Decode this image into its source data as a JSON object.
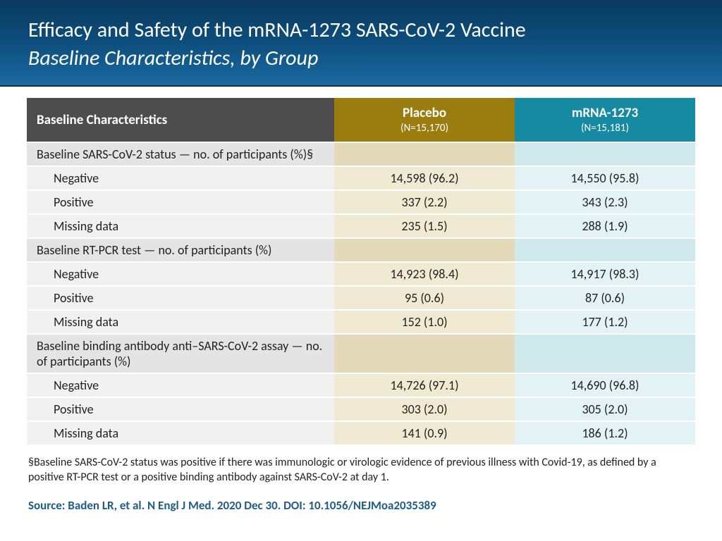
{
  "header": {
    "title": "Efficacy and Safety of the mRNA-1273 SARS-CoV-2 Vaccine",
    "subtitle": "Baseline Characteristics, by Group"
  },
  "table": {
    "columns": {
      "char": {
        "label": "Baseline Characteristics",
        "bg": "#4d4d4d",
        "fg": "#ffffff"
      },
      "placebo": {
        "label": "Placebo",
        "sub": "(N=15,170)",
        "bg": "#9b7c0e",
        "fg": "#ffffff"
      },
      "mrna": {
        "label": "mRNA-1273",
        "sub": "(N=15,181)",
        "bg": "#158aa2",
        "fg": "#ffffff"
      }
    },
    "row_bg": {
      "section": {
        "c1": "#e4e4e4",
        "c2": "#e4d9b9",
        "c3": "#cfe8ec"
      },
      "sub": {
        "c1": "#f1f1f1",
        "c2": "#f1ead2",
        "c3": "#e3f2f4"
      }
    },
    "rows": [
      {
        "type": "section",
        "c1": "Baseline SARS-CoV-2 status — no. of participants (%)§",
        "c2": "",
        "c3": ""
      },
      {
        "type": "sub",
        "c1": "Negative",
        "c2": "14,598 (96.2)",
        "c3": "14,550 (95.8)"
      },
      {
        "type": "sub",
        "c1": "Positive",
        "c2": "337 (2.2)",
        "c3": "343 (2.3)"
      },
      {
        "type": "sub",
        "c1": "Missing data",
        "c2": "235 (1.5)",
        "c3": "288 (1.9)"
      },
      {
        "type": "section",
        "c1": "Baseline RT-PCR test — no. of participants (%)",
        "c2": "",
        "c3": ""
      },
      {
        "type": "sub",
        "c1": "Negative",
        "c2": "14,923 (98.4)",
        "c3": "14,917 (98.3)"
      },
      {
        "type": "sub",
        "c1": "Positive",
        "c2": "95 (0.6)",
        "c3": "87 (0.6)"
      },
      {
        "type": "sub",
        "c1": "Missing data",
        "c2": "152 (1.0)",
        "c3": "177 (1.2)"
      },
      {
        "type": "section",
        "c1": "Baseline binding antibody anti–SARS-CoV-2 assay — no. of participants (%)",
        "c2": "",
        "c3": ""
      },
      {
        "type": "sub",
        "c1": "Negative",
        "c2": "14,726 (97.1)",
        "c3": "14,690 (96.8)"
      },
      {
        "type": "sub",
        "c1": "Positive",
        "c2": "303 (2.0)",
        "c3": "305 (2.0)"
      },
      {
        "type": "sub",
        "c1": "Missing data",
        "c2": "141 (0.9)",
        "c3": "186 (1.2)"
      }
    ]
  },
  "footnote": "§Baseline SARS-CoV-2 status was positive if there was immunologic or virologic evidence of previous illness with Covid-19, as defined by a positive RT-PCR test or a positive binding antibody against SARS-CoV-2 at day 1.",
  "source": {
    "text": "Source: Baden LR, et al. N Engl J Med. 2020 Dec 30. DOI: 10.1056/NEJMoa2035389",
    "color": "#1f5d88"
  }
}
